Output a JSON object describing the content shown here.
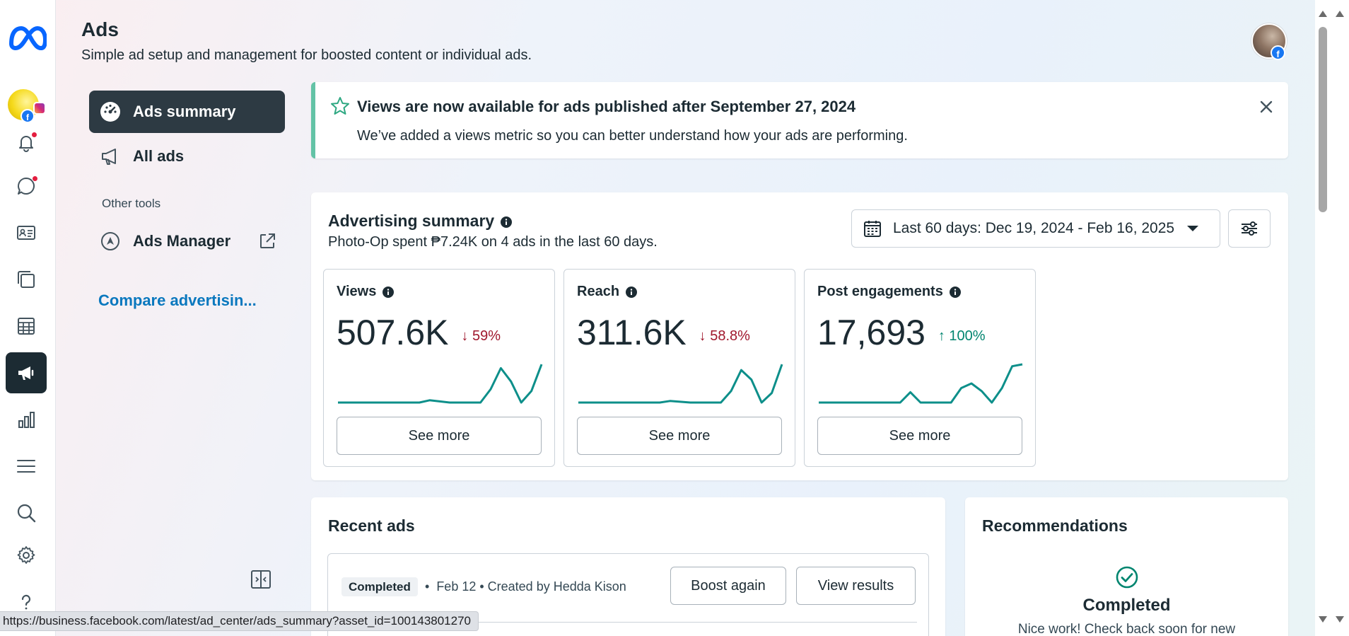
{
  "header": {
    "title": "Ads",
    "subtitle": "Simple ad setup and management for boosted content or individual ads."
  },
  "sidebar": {
    "items": [
      {
        "label": "Ads summary"
      },
      {
        "label": "All ads"
      }
    ],
    "other_tools_label": "Other tools",
    "ads_manager_label": "Ads Manager",
    "compare_link": "Compare advertisin..."
  },
  "notice": {
    "title": "Views are now available for ads published after September 27, 2024",
    "body": "We’ve added a views metric so you can better understand how your ads are performing."
  },
  "summary": {
    "title": "Advertising summary",
    "subtitle": "Photo-Op spent ₱7.24K on 4 ads in the last 60 days.",
    "date_range": "Last 60 days: Dec 19, 2024 - Feb 16, 2025",
    "see_more_label": "See more",
    "metrics": [
      {
        "label": "Views",
        "value": "507.6K",
        "change": "59%",
        "direction": "down",
        "trend": [
          0,
          0,
          0,
          0,
          0,
          0,
          0,
          0,
          0,
          0.06,
          0.03,
          0,
          0,
          0,
          0,
          0.35,
          0.9,
          0.55,
          0,
          0.3,
          1
        ]
      },
      {
        "label": "Reach",
        "value": "311.6K",
        "change": "58.8%",
        "direction": "down",
        "trend": [
          0,
          0,
          0,
          0,
          0,
          0,
          0,
          0,
          0,
          0.04,
          0.02,
          0,
          0,
          0,
          0,
          0.3,
          0.85,
          0.6,
          0,
          0.25,
          1
        ]
      },
      {
        "label": "Post engagements",
        "value": "17,693",
        "change": "100%",
        "direction": "up",
        "trend": [
          0,
          0,
          0,
          0,
          0,
          0,
          0,
          0,
          0,
          0.27,
          0,
          0,
          0,
          0,
          0.38,
          0.5,
          0.3,
          0,
          0.38,
          0.95,
          1
        ]
      }
    ]
  },
  "recent_ads": {
    "title": "Recent ads",
    "status_badge": "Completed",
    "meta": "Feb 12 • Created by Hedda Kison",
    "boost_again_label": "Boost again",
    "view_results_label": "View results"
  },
  "recommendations": {
    "title": "Recommendations",
    "status": "Completed",
    "hint": "Nice work! Check back soon for new"
  },
  "status_bar": {
    "url": "https://business.facebook.com/latest/ad_center/ads_summary?asset_id=100143801270"
  },
  "colors": {
    "accent": "#0a78be",
    "dark": "#1c2b33",
    "positive": "#00856f",
    "negative": "#a0182d",
    "sparkline": "#0d8f8a"
  }
}
